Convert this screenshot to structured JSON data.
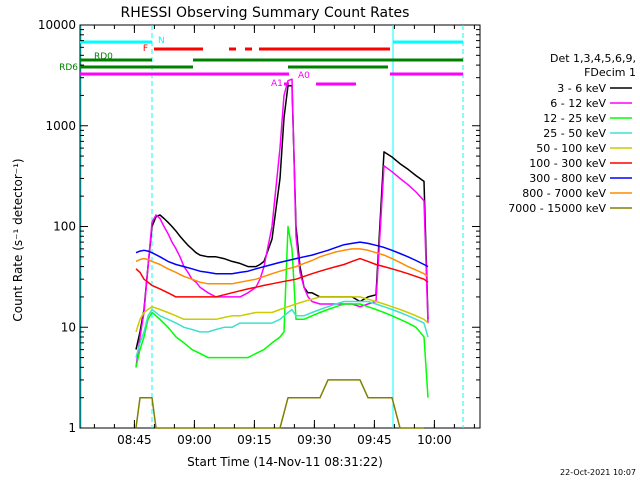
{
  "colors": {
    "background": "#ffffff",
    "axes": "#000000",
    "black": "#000000",
    "magenta": "#ff00ff",
    "green": "#00ff00",
    "yellow": "#cccc00",
    "red": "#ff0000",
    "blue": "#0000ff",
    "orange": "#ff8c00",
    "olive": "#808000",
    "cyan": "#00ffff",
    "darkgreen": "#008000"
  },
  "chart_data": {
    "type": "line",
    "title": "RHESSI Observing Summary Count Rates",
    "xlabel": "Start Time (14-Nov-11 08:31:22)",
    "ylabel": "Count Rate (s⁻¹ detector⁻¹)",
    "ylog": true,
    "ylim": [
      1,
      10000
    ],
    "xlim_minutes_after_start": [
      0,
      100
    ],
    "x_ticks": [
      {
        "label": "08:45",
        "minute": 13.6
      },
      {
        "label": "09:00",
        "minute": 28.6
      },
      {
        "label": "09:15",
        "minute": 43.6
      },
      {
        "label": "09:30",
        "minute": 58.6
      },
      {
        "label": "09:45",
        "minute": 73.6
      },
      {
        "label": "10:00",
        "minute": 88.6
      }
    ],
    "y_ticks": [
      {
        "label": "1",
        "value": 1
      },
      {
        "label": "10",
        "value": 10
      },
      {
        "label": "100",
        "value": 100
      },
      {
        "label": "1000",
        "value": 1000
      },
      {
        "label": "10000",
        "value": 10000
      }
    ],
    "legend_header": [
      "Det 1,3,4,5,6,9,",
      "FDecim 1"
    ],
    "legend_position": "right",
    "x_unit": "minutes after 08:31:22",
    "series": [
      {
        "name": "3 - 6 keV",
        "color": "black",
        "x": [
          14,
          15,
          16,
          17,
          18,
          19,
          20,
          21,
          22,
          23,
          24,
          25,
          26,
          27,
          28,
          29,
          30,
          32,
          34,
          36,
          38,
          40,
          42,
          44,
          45,
          46,
          48,
          50,
          51,
          52,
          53,
          54,
          55,
          56,
          57,
          58,
          60,
          62,
          64,
          66,
          68,
          70,
          72,
          74,
          76,
          78,
          80,
          82,
          84,
          86,
          87
        ],
        "y": [
          6,
          9,
          15,
          40,
          100,
          125,
          130,
          120,
          110,
          100,
          90,
          80,
          72,
          65,
          60,
          55,
          52,
          50,
          50,
          48,
          45,
          43,
          40,
          40,
          42,
          45,
          75,
          300,
          1200,
          2500,
          2500,
          100,
          40,
          25,
          22,
          22,
          20,
          20,
          20,
          20,
          20,
          18,
          20,
          21,
          550,
          490,
          420,
          370,
          320,
          280,
          12
        ]
      },
      {
        "name": "6 - 12 keV",
        "color": "magenta",
        "x": [
          14,
          15,
          16,
          17,
          18,
          19,
          20,
          21,
          22,
          23,
          24,
          25,
          26,
          27,
          28,
          29,
          30,
          32,
          34,
          36,
          38,
          40,
          42,
          44,
          45,
          46,
          48,
          50,
          51,
          52,
          53,
          54,
          55,
          56,
          57,
          58,
          60,
          62,
          64,
          66,
          68,
          70,
          72,
          74,
          76,
          78,
          80,
          82,
          84,
          86,
          87
        ],
        "y": [
          4,
          8,
          14,
          40,
          110,
          130,
          120,
          100,
          85,
          70,
          60,
          50,
          40,
          35,
          30,
          28,
          25,
          22,
          20,
          20,
          20,
          20,
          22,
          25,
          30,
          40,
          100,
          600,
          2000,
          2800,
          2900,
          80,
          35,
          25,
          20,
          18,
          17,
          17,
          17,
          17,
          17,
          16,
          17,
          18,
          400,
          350,
          300,
          260,
          220,
          180,
          11
        ]
      },
      {
        "name": "12 - 25 keV",
        "color": "green",
        "x": [
          14,
          15,
          16,
          17,
          18,
          19,
          20,
          22,
          24,
          26,
          28,
          30,
          32,
          34,
          36,
          38,
          40,
          42,
          44,
          46,
          48,
          50,
          51,
          52,
          53,
          54,
          56,
          58,
          60,
          62,
          64,
          66,
          68,
          70,
          72,
          74,
          76,
          78,
          80,
          82,
          84,
          86,
          87
        ],
        "y": [
          4,
          6,
          8,
          12,
          14,
          13,
          12,
          10,
          8,
          7,
          6,
          5.5,
          5,
          5,
          5,
          5,
          5,
          5,
          5.5,
          6,
          7,
          8,
          9,
          100,
          60,
          12,
          12,
          13,
          14,
          15,
          16,
          17,
          17,
          17,
          16,
          15,
          14,
          13,
          12,
          11,
          10,
          8,
          2
        ]
      },
      {
        "name": "25 - 50 keV",
        "color": "turquoise",
        "x": [
          14,
          15,
          16,
          17,
          18,
          20,
          22,
          24,
          26,
          28,
          30,
          32,
          34,
          36,
          38,
          40,
          42,
          44,
          46,
          48,
          50,
          51,
          52,
          53,
          54,
          56,
          58,
          60,
          62,
          64,
          66,
          68,
          70,
          72,
          74,
          76,
          78,
          80,
          82,
          84,
          86,
          87
        ],
        "y": [
          5,
          7,
          9,
          13,
          15,
          13,
          12,
          11,
          10,
          9.5,
          9,
          9,
          9.5,
          10,
          10,
          11,
          11,
          11,
          11,
          11,
          12,
          13,
          14,
          15,
          13,
          13,
          14,
          15,
          16,
          17,
          18,
          18,
          18,
          18,
          17,
          16,
          15,
          14,
          13,
          12,
          11,
          8
        ]
      },
      {
        "name": "50 - 100 keV",
        "color": "yellow",
        "x": [
          14,
          15,
          16,
          17,
          18,
          20,
          22,
          24,
          26,
          28,
          30,
          32,
          34,
          36,
          38,
          40,
          42,
          44,
          46,
          48,
          50,
          52,
          54,
          56,
          58,
          60,
          62,
          64,
          66,
          68,
          70,
          72,
          74,
          76,
          78,
          80,
          82,
          84,
          86,
          87
        ],
        "y": [
          9,
          12,
          14,
          15,
          16,
          15,
          14,
          13,
          12,
          12,
          12,
          12,
          12,
          12.5,
          13,
          13,
          13.5,
          14,
          14,
          14,
          15,
          16,
          17,
          18,
          19,
          20,
          20,
          20,
          20,
          20,
          20,
          19,
          18,
          17,
          16,
          15,
          14,
          13,
          12,
          11
        ]
      },
      {
        "name": "100 - 300 keV",
        "color": "red",
        "x": [
          14,
          15,
          16,
          17,
          18,
          20,
          22,
          24,
          26,
          28,
          30,
          32,
          34,
          36,
          38,
          40,
          42,
          44,
          46,
          48,
          50,
          52,
          54,
          56,
          58,
          60,
          62,
          64,
          66,
          68,
          70,
          72,
          74,
          76,
          78,
          80,
          82,
          84,
          86,
          87
        ],
        "y": [
          38,
          35,
          30,
          28,
          26,
          24,
          22,
          20,
          20,
          20,
          20,
          20,
          20,
          21,
          22,
          23,
          24,
          25,
          26,
          27,
          28,
          29,
          30,
          32,
          34,
          36,
          38,
          40,
          42,
          45,
          48,
          45,
          42,
          40,
          38,
          36,
          34,
          32,
          30,
          28
        ]
      },
      {
        "name": "300 - 800 keV",
        "color": "blue",
        "x": [
          14,
          15,
          16,
          17,
          18,
          20,
          22,
          24,
          26,
          28,
          30,
          32,
          34,
          36,
          38,
          40,
          42,
          44,
          46,
          48,
          50,
          52,
          54,
          56,
          58,
          60,
          62,
          64,
          66,
          68,
          70,
          72,
          74,
          76,
          78,
          80,
          82,
          84,
          86,
          87
        ],
        "y": [
          55,
          57,
          58,
          57,
          55,
          50,
          45,
          42,
          40,
          38,
          36,
          35,
          34,
          34,
          34,
          35,
          36,
          38,
          40,
          42,
          44,
          46,
          48,
          50,
          52,
          55,
          58,
          62,
          66,
          68,
          70,
          68,
          65,
          62,
          58,
          54,
          50,
          46,
          42,
          40
        ]
      },
      {
        "name": "800 - 7000 keV",
        "color": "orange",
        "x": [
          14,
          15,
          16,
          17,
          18,
          20,
          22,
          24,
          26,
          28,
          30,
          32,
          34,
          36,
          38,
          40,
          42,
          44,
          46,
          48,
          50,
          52,
          54,
          56,
          58,
          60,
          62,
          64,
          66,
          68,
          70,
          72,
          74,
          76,
          78,
          80,
          82,
          84,
          86,
          87
        ],
        "y": [
          45,
          47,
          48,
          47,
          45,
          42,
          38,
          35,
          32,
          30,
          28,
          27,
          27,
          27,
          27,
          28,
          29,
          30,
          32,
          34,
          36,
          38,
          40,
          43,
          46,
          50,
          53,
          56,
          58,
          60,
          60,
          58,
          55,
          52,
          48,
          44,
          40,
          37,
          34,
          32
        ]
      },
      {
        "name": "7000 - 15000 keV",
        "color": "olive",
        "x": [
          14,
          15,
          16,
          17,
          18,
          19,
          20,
          21,
          22,
          23,
          24,
          25,
          26,
          27,
          28,
          29,
          30,
          32,
          34,
          36,
          38,
          40,
          42,
          44,
          46,
          48,
          50,
          52,
          54,
          56,
          58,
          60,
          62,
          64,
          66,
          68,
          70,
          72,
          74,
          76,
          78,
          80,
          82,
          84,
          86
        ],
        "y": [
          1,
          2,
          2,
          2,
          2,
          1,
          1,
          1,
          1,
          1,
          1,
          1,
          1,
          1,
          1,
          1,
          1,
          1,
          1,
          1,
          1,
          1,
          1,
          1,
          1,
          1,
          1,
          2,
          2,
          2,
          2,
          2,
          3,
          3,
          3,
          3,
          3,
          2,
          2,
          2,
          2,
          1,
          1,
          1,
          1
        ]
      }
    ],
    "flag_labels": {
      "n": "N",
      "f": "F",
      "rd0": "RD0",
      "rd6": "RD6",
      "a1": "A1",
      "a0": "A0"
    },
    "timestamp": "22-Oct-2021 10:07"
  }
}
